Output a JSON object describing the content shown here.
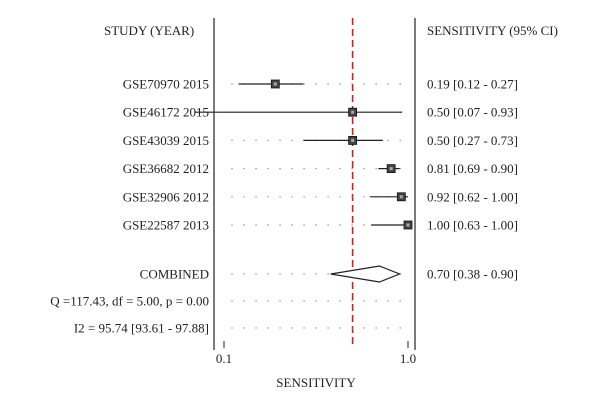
{
  "chart_data": {
    "type": "forest",
    "left_header": "STUDY (YEAR)",
    "right_header": "SENSITIVITY (95% CI)",
    "xlabel": "SENSITIVITY",
    "x_scale": "log",
    "xlim": [
      0.1,
      1.0
    ],
    "x_ticks": [
      0.1,
      1.0
    ],
    "x_tick_labels": [
      "0.1",
      "1.0"
    ],
    "reference_line": 0.5,
    "colors": {
      "reference": "#cc1f1f",
      "marks": "#222222",
      "dots": "#888888"
    },
    "studies": [
      {
        "label": "GSE70970 2015",
        "estimate": 0.19,
        "lower": 0.12,
        "upper": 0.27,
        "ci_text": "0.19 [0.12 - 0.27]"
      },
      {
        "label": "GSE46172 2015",
        "estimate": 0.5,
        "lower": 0.07,
        "upper": 0.93,
        "ci_text": "0.50 [0.07 - 0.93]"
      },
      {
        "label": "GSE43039 2015",
        "estimate": 0.5,
        "lower": 0.27,
        "upper": 0.73,
        "ci_text": "0.50 [0.27 - 0.73]"
      },
      {
        "label": "GSE36682 2012",
        "estimate": 0.81,
        "lower": 0.69,
        "upper": 0.9,
        "ci_text": "0.81 [0.69 - 0.90]"
      },
      {
        "label": "GSE32906 2012",
        "estimate": 0.92,
        "lower": 0.62,
        "upper": 1.0,
        "ci_text": "0.92 [0.62 - 1.00]"
      },
      {
        "label": "GSE22587 2013",
        "estimate": 1.0,
        "lower": 0.63,
        "upper": 1.0,
        "ci_text": "1.00 [0.63 - 1.00]"
      }
    ],
    "combined": {
      "label": "COMBINED",
      "estimate": 0.7,
      "lower": 0.38,
      "upper": 0.9,
      "ci_text": "0.70 [0.38 - 0.90]"
    },
    "heterogeneity": [
      "Q =117.43, df = 5.00, p = 0.00",
      "I2 = 95.74 [93.61 - 97.88]"
    ]
  }
}
